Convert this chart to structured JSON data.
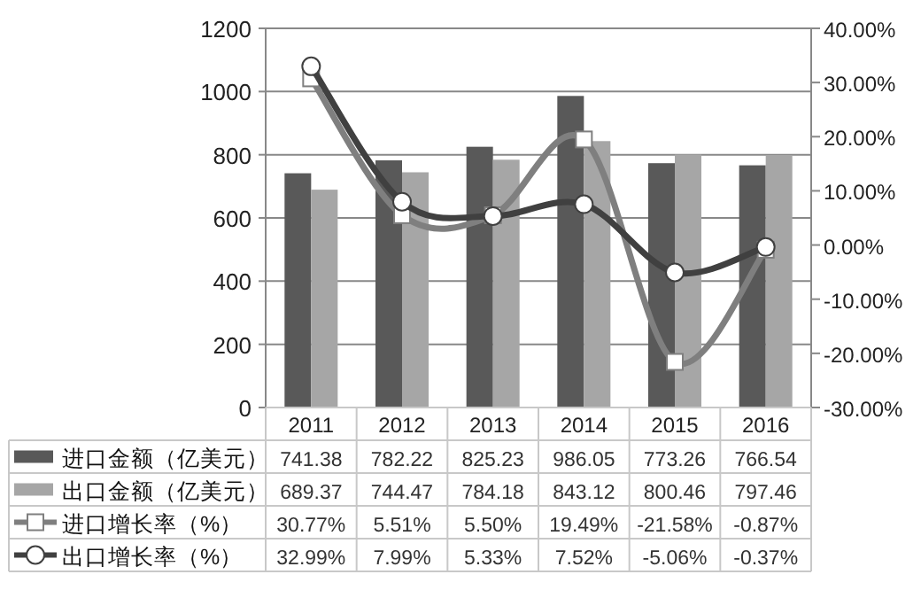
{
  "chart_data": {
    "type": "bar",
    "categories": [
      "2011",
      "2012",
      "2013",
      "2014",
      "2015",
      "2016"
    ],
    "series": [
      {
        "name": "进口金额（亿美元）",
        "color": "#595959",
        "values": [
          741.38,
          782.22,
          825.23,
          986.05,
          773.26,
          766.54
        ],
        "value_labels": [
          "741.38",
          "782.22",
          "825.23",
          "986.05",
          "773.26",
          "766.54"
        ]
      },
      {
        "name": "出口金额（亿美元）",
        "color": "#a6a6a6",
        "values": [
          689.37,
          744.47,
          784.18,
          843.12,
          800.46,
          797.46
        ],
        "value_labels": [
          "689.37",
          "744.47",
          "784.18",
          "843.12",
          "800.46",
          "797.46"
        ]
      },
      {
        "name": "进口增长率（%）",
        "type": "line",
        "axis": "y2",
        "marker": "square",
        "color": "#7f7f7f",
        "values": [
          30.77,
          5.51,
          5.5,
          19.49,
          -21.58,
          -0.87
        ],
        "value_labels": [
          "30.77%",
          "5.51%",
          "5.50%",
          "19.49%",
          "-21.58%",
          "-0.87%"
        ]
      },
      {
        "name": "出口增长率（%）",
        "type": "line",
        "axis": "y2",
        "marker": "circle",
        "color": "#404040",
        "values": [
          32.99,
          7.99,
          5.33,
          7.52,
          -5.06,
          -0.37
        ],
        "value_labels": [
          "32.99%",
          "7.99%",
          "5.33%",
          "7.52%",
          "-5.06%",
          "-0.37%"
        ]
      }
    ],
    "ylim": [
      0,
      1200
    ],
    "yticks": [
      0,
      200,
      400,
      600,
      800,
      1000,
      1200
    ],
    "y2lim": [
      -30,
      40
    ],
    "y2ticks": [
      {
        "value": -30,
        "label": "-30.00%"
      },
      {
        "value": -20,
        "label": "-20.00%"
      },
      {
        "value": -10,
        "label": "-10.00%"
      },
      {
        "value": 0,
        "label": "0.00%"
      },
      {
        "value": 10,
        "label": "10.00%"
      },
      {
        "value": 20,
        "label": "20.00%"
      },
      {
        "value": 30,
        "label": "30.00%"
      },
      {
        "value": 40,
        "label": "40.00%"
      }
    ],
    "grid": "y",
    "legend": "bottom"
  }
}
